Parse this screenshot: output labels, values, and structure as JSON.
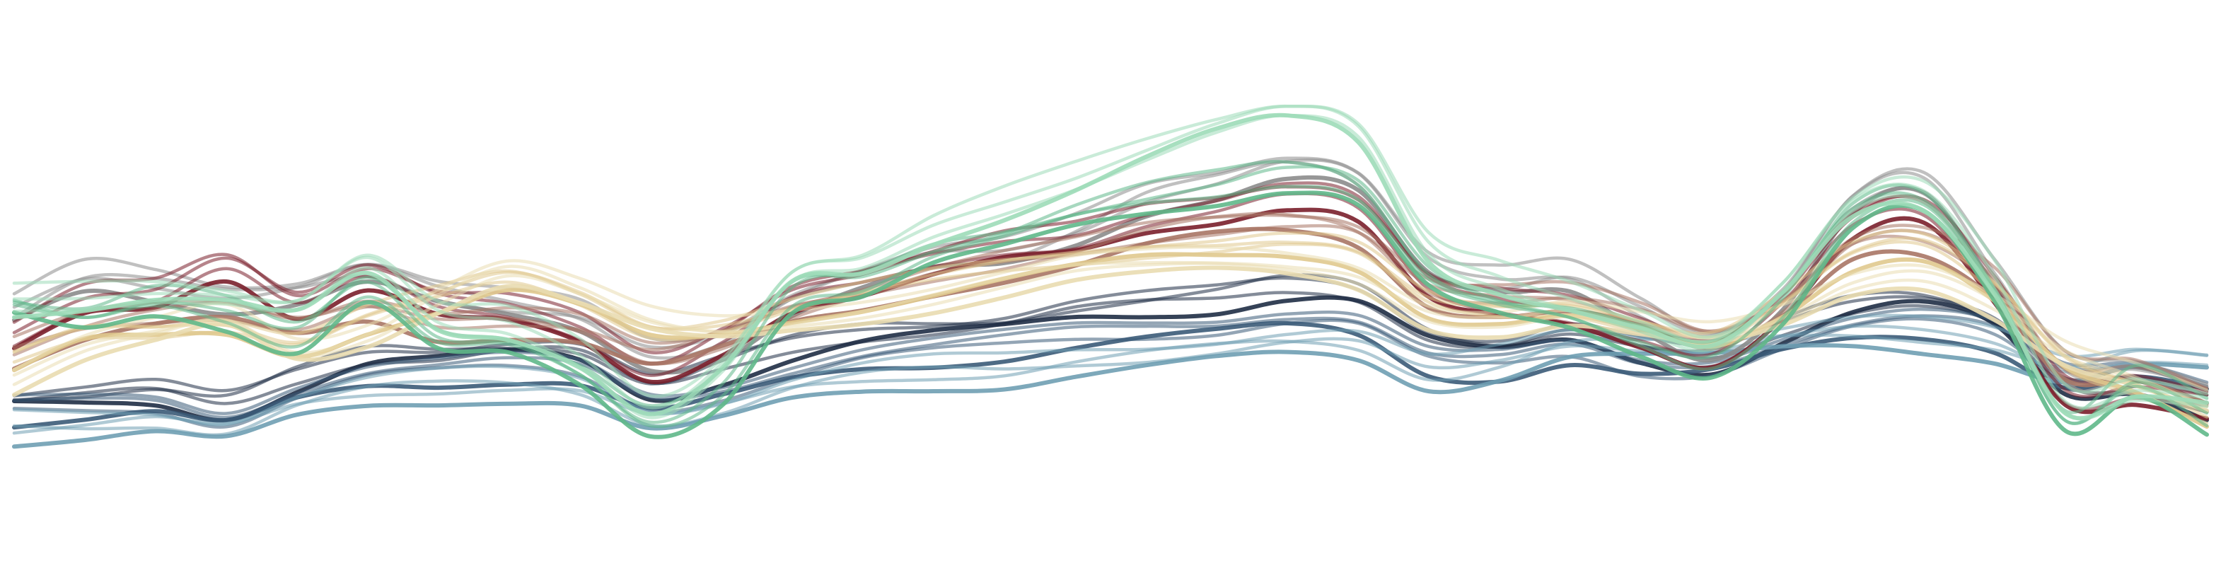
{
  "chart_data": {
    "type": "line",
    "title": "",
    "xlabel": "",
    "ylabel": "",
    "axes_visible": false,
    "grid": false,
    "legend": "none",
    "x": [
      0,
      1,
      2,
      3,
      4,
      5,
      6,
      7,
      8,
      9,
      10,
      11,
      12,
      13,
      14,
      15,
      16,
      17,
      18,
      19,
      20,
      21,
      22,
      23,
      24,
      25,
      26,
      27,
      28,
      29,
      30,
      31
    ],
    "xlim": [
      0,
      31
    ],
    "ylim": [
      -1.8,
      6
    ],
    "palette": [
      "#1f2e45",
      "#3b5b78",
      "#6f9fb3",
      "#8c8c8c",
      "#7a1f2b",
      "#a87565",
      "#e0c98e",
      "#e9dcb0",
      "#5fb88a",
      "#9ddbb8"
    ],
    "series": [
      {
        "color": "#1f2e45",
        "values": [
          0.2,
          0.25,
          0.3,
          0.1,
          0.55,
          0.95,
          1.0,
          1.1,
          1.0,
          0.4,
          0.7,
          1.1,
          1.35,
          1.45,
          1.55,
          1.75,
          1.85,
          1.95,
          2.15,
          2.05,
          1.35,
          1.15,
          1.35,
          1.05,
          0.9,
          1.4,
          1.85,
          1.95,
          1.55,
          0.4,
          0.5,
          0.1
        ]
      },
      {
        "color": "#3b5b78",
        "values": [
          -0.05,
          0.0,
          0.05,
          -0.15,
          0.3,
          0.6,
          0.65,
          0.7,
          0.6,
          0.1,
          0.3,
          0.65,
          0.9,
          1.0,
          1.1,
          1.25,
          1.35,
          1.45,
          1.6,
          1.5,
          0.85,
          0.75,
          0.95,
          0.7,
          0.75,
          1.15,
          1.45,
          1.5,
          1.25,
          0.55,
          0.65,
          0.4
        ]
      },
      {
        "color": "#6f9fb3",
        "values": [
          -0.3,
          -0.25,
          -0.2,
          -0.35,
          0.05,
          0.3,
          0.4,
          0.45,
          0.35,
          -0.15,
          0.0,
          0.35,
          0.55,
          0.65,
          0.7,
          0.85,
          0.95,
          1.05,
          1.15,
          1.1,
          0.65,
          0.85,
          1.2,
          1.15,
          1.1,
          1.25,
          1.35,
          1.3,
          1.15,
          0.75,
          0.95,
          0.85
        ]
      },
      {
        "color": "#8c8c8c",
        "values": [
          1.7,
          2.3,
          2.2,
          2.0,
          2.1,
          2.4,
          2.0,
          1.8,
          1.6,
          1.0,
          1.2,
          1.9,
          2.3,
          2.6,
          2.7,
          3.1,
          3.7,
          4.0,
          4.3,
          4.0,
          2.5,
          2.2,
          2.3,
          1.7,
          1.2,
          2.0,
          3.6,
          3.9,
          2.3,
          0.7,
          0.6,
          0.3
        ]
      },
      {
        "color": "#7a1f2b",
        "values": [
          1.2,
          1.9,
          2.1,
          2.6,
          1.9,
          2.3,
          1.8,
          1.7,
          1.4,
          0.8,
          1.3,
          2.0,
          2.2,
          2.5,
          2.8,
          3.0,
          3.4,
          3.6,
          3.8,
          3.5,
          2.1,
          1.8,
          1.7,
          1.4,
          1.1,
          1.9,
          3.2,
          3.4,
          2.0,
          0.3,
          0.4,
          0.2
        ]
      },
      {
        "color": "#a87565",
        "values": [
          1.0,
          1.4,
          1.6,
          1.7,
          1.5,
          1.8,
          1.5,
          1.5,
          1.35,
          0.9,
          1.2,
          1.7,
          2.0,
          2.3,
          2.5,
          2.7,
          3.0,
          3.2,
          3.3,
          3.1,
          2.1,
          1.9,
          1.9,
          1.6,
          1.2,
          1.8,
          2.9,
          3.0,
          2.2,
          0.7,
          0.6,
          0.2
        ]
      },
      {
        "color": "#e0c98e",
        "values": [
          0.8,
          1.3,
          1.4,
          1.5,
          1.2,
          1.6,
          1.9,
          2.2,
          1.9,
          1.4,
          1.5,
          1.8,
          2.0,
          2.2,
          2.4,
          2.6,
          2.8,
          2.9,
          2.95,
          2.7,
          1.8,
          1.6,
          1.7,
          1.5,
          1.3,
          1.9,
          2.7,
          2.8,
          2.0,
          0.8,
          0.4,
          -0.1
        ]
      },
      {
        "color": "#e9dcb0",
        "values": [
          0.5,
          1.0,
          1.3,
          1.6,
          1.1,
          1.4,
          2.0,
          2.4,
          2.0,
          1.5,
          1.4,
          1.6,
          1.8,
          2.0,
          2.2,
          2.4,
          2.5,
          2.6,
          2.6,
          2.4,
          1.7,
          1.5,
          1.6,
          1.4,
          1.3,
          1.7,
          2.3,
          2.4,
          1.8,
          0.9,
          0.5,
          0.1
        ]
      },
      {
        "color": "#5fb88a",
        "values": [
          1.8,
          1.6,
          1.9,
          1.7,
          1.3,
          2.1,
          1.2,
          1.1,
          0.6,
          -0.2,
          0.4,
          2.0,
          2.2,
          2.7,
          3.0,
          3.4,
          3.7,
          3.9,
          4.1,
          3.8,
          2.3,
          1.8,
          1.6,
          1.2,
          0.9,
          1.8,
          3.4,
          3.6,
          2.0,
          -0.2,
          0.5,
          -0.1
        ]
      },
      {
        "color": "#9ddbb8",
        "values": [
          1.9,
          2.0,
          2.1,
          2.0,
          1.8,
          2.5,
          1.6,
          1.5,
          1.0,
          0.1,
          0.8,
          2.3,
          2.5,
          3.1,
          3.6,
          4.1,
          4.6,
          5.0,
          5.2,
          4.8,
          2.8,
          2.3,
          2.0,
          1.6,
          1.2,
          2.1,
          3.5,
          3.7,
          2.3,
          0.2,
          0.4,
          0.2
        ]
      }
    ]
  }
}
